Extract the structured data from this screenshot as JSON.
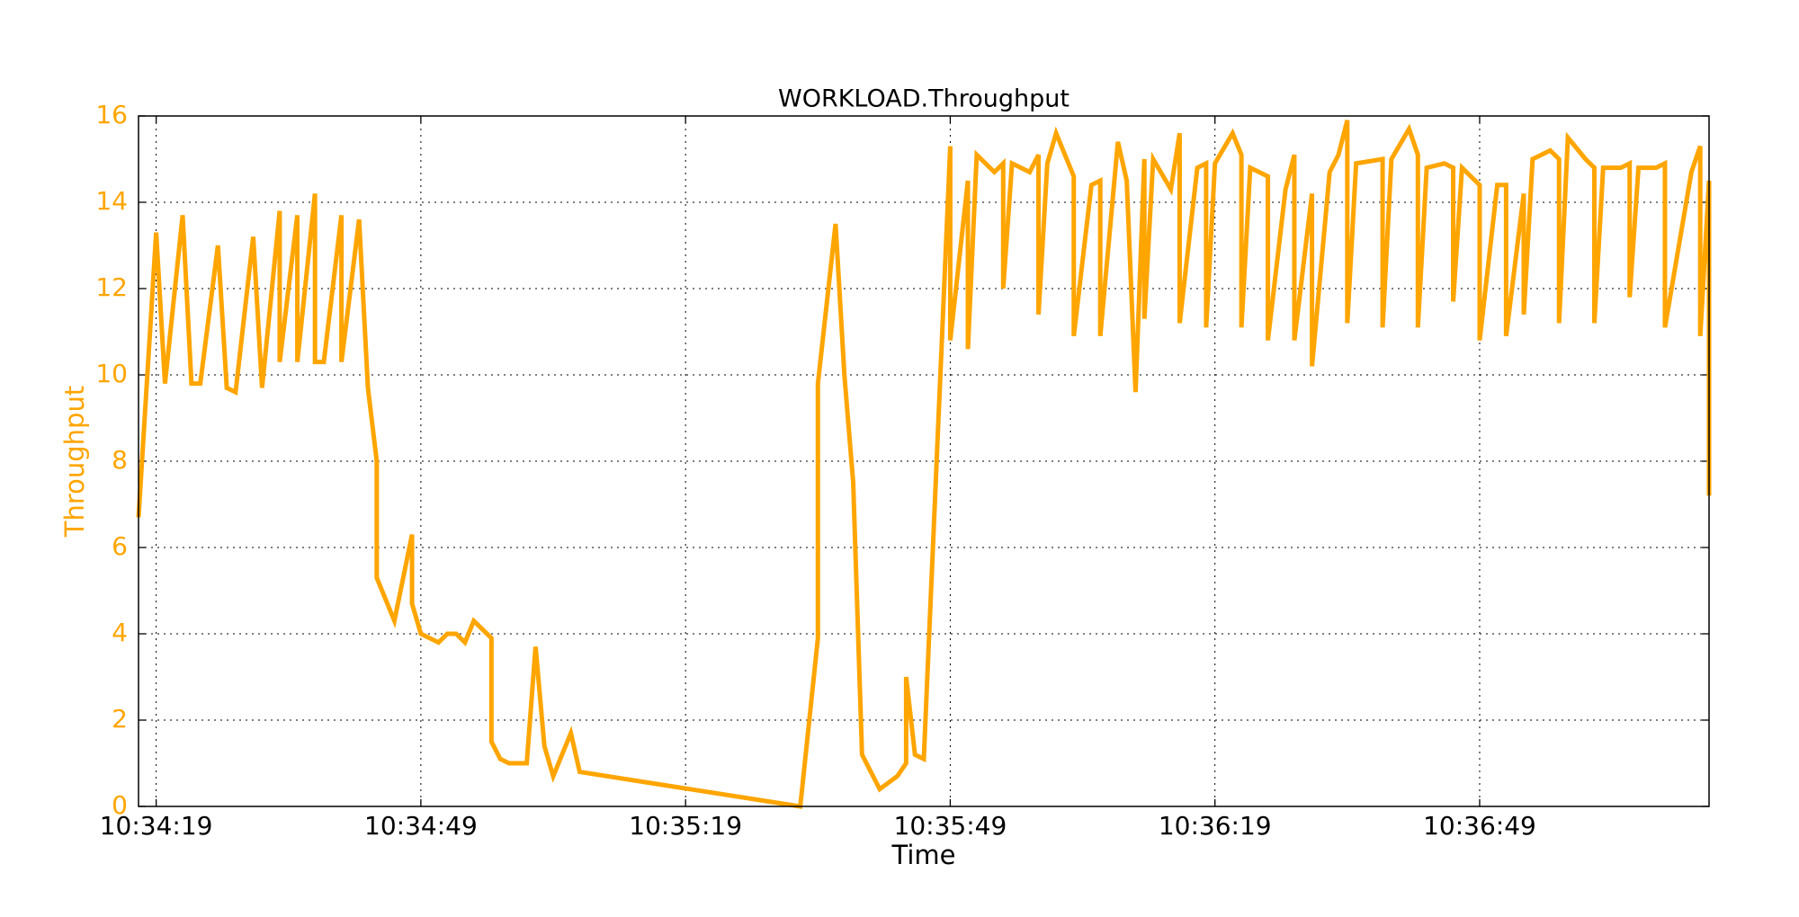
{
  "chart_data": {
    "type": "line",
    "title": "WORKLOAD.Throughput",
    "x_label": "Time",
    "y_label": "Throughput",
    "x": [
      "10:34:17",
      "10:34:19",
      "10:34:20",
      "10:34:22",
      "10:34:23",
      "10:34:24",
      "10:34:26",
      "10:34:27",
      "10:34:28",
      "10:34:30",
      "10:34:31",
      "10:34:33",
      "10:34:33",
      "10:34:35",
      "10:34:35",
      "10:34:37",
      "10:34:37",
      "10:34:38",
      "10:34:40",
      "10:34:40",
      "10:34:42",
      "10:34:43",
      "10:34:44",
      "10:34:44",
      "10:34:46",
      "10:34:48",
      "10:34:48",
      "10:34:49",
      "10:34:51",
      "10:34:52",
      "10:34:53",
      "10:34:54",
      "10:34:55",
      "10:34:56",
      "10:34:57",
      "10:34:57",
      "10:34:58",
      "10:34:59",
      "10:35:01",
      "10:35:02",
      "10:35:03",
      "10:35:04",
      "10:35:06",
      "10:35:07",
      "10:35:32",
      "10:35:34",
      "10:35:34",
      "10:35:36",
      "10:35:37",
      "10:35:38",
      "10:35:39",
      "10:35:41",
      "10:35:43",
      "10:35:44",
      "10:35:44",
      "10:35:45",
      "10:35:46",
      "10:35:49",
      "10:35:49",
      "10:35:51",
      "10:35:51",
      "10:35:52",
      "10:35:54",
      "10:35:55",
      "10:35:55",
      "10:35:56",
      "10:35:58",
      "10:35:59",
      "10:35:59",
      "10:36:00",
      "10:36:01",
      "10:36:03",
      "10:36:03",
      "10:36:05",
      "10:36:06",
      "10:36:06",
      "10:36:08",
      "10:36:09",
      "10:36:10",
      "10:36:11",
      "10:36:11",
      "10:36:12",
      "10:36:14",
      "10:36:15",
      "10:36:15",
      "10:36:17",
      "10:36:18",
      "10:36:18",
      "10:36:19",
      "10:36:21",
      "10:36:22",
      "10:36:22",
      "10:36:23",
      "10:36:25",
      "10:36:25",
      "10:36:27",
      "10:36:28",
      "10:36:28",
      "10:36:30",
      "10:36:30",
      "10:36:32",
      "10:36:33",
      "10:36:34",
      "10:36:34",
      "10:36:35",
      "10:36:38",
      "10:36:38",
      "10:36:39",
      "10:36:41",
      "10:36:42",
      "10:36:42",
      "10:36:43",
      "10:36:45",
      "10:36:46",
      "10:36:46",
      "10:36:47",
      "10:36:49",
      "10:36:49",
      "10:36:51",
      "10:36:52",
      "10:36:52",
      "10:36:54",
      "10:36:54",
      "10:36:55",
      "10:36:57",
      "10:36:58",
      "10:36:58",
      "10:36:59",
      "10:37:01",
      "10:37:02",
      "10:37:02",
      "10:37:03",
      "10:37:05",
      "10:37:06",
      "10:37:06",
      "10:37:07",
      "10:37:09",
      "10:37:10",
      "10:37:10",
      "10:37:13",
      "10:37:14",
      "10:37:14",
      "10:37:15",
      "10:37:15"
    ],
    "series": [
      {
        "name": "Throughput",
        "color": "#ffa500",
        "values": [
          6.7,
          13.3,
          9.8,
          13.7,
          9.8,
          9.8,
          13.0,
          9.7,
          9.6,
          13.2,
          9.7,
          13.8,
          10.3,
          13.7,
          10.3,
          14.2,
          10.3,
          10.3,
          13.7,
          10.3,
          13.6,
          9.7,
          8.0,
          5.3,
          4.3,
          6.3,
          4.7,
          4.0,
          3.8,
          4.0,
          4.0,
          3.8,
          4.3,
          4.1,
          3.9,
          1.5,
          1.1,
          1.0,
          1.0,
          3.7,
          1.4,
          0.7,
          1.7,
          0.8,
          0.0,
          3.9,
          9.8,
          13.5,
          10.0,
          7.5,
          1.2,
          0.4,
          0.7,
          1.0,
          3.0,
          1.2,
          1.1,
          15.3,
          10.8,
          14.5,
          10.6,
          15.1,
          14.7,
          14.9,
          12.0,
          14.9,
          14.7,
          15.1,
          11.4,
          14.9,
          15.6,
          14.6,
          10.9,
          14.4,
          14.5,
          10.9,
          15.4,
          14.5,
          9.6,
          15.0,
          11.3,
          15.0,
          14.3,
          15.6,
          11.2,
          14.8,
          14.9,
          11.1,
          14.9,
          15.6,
          15.1,
          11.1,
          14.8,
          14.6,
          10.8,
          14.3,
          15.1,
          10.8,
          14.2,
          10.2,
          14.7,
          15.1,
          15.9,
          11.2,
          14.9,
          15.0,
          11.1,
          15.0,
          15.7,
          15.1,
          11.1,
          14.8,
          14.9,
          14.8,
          11.7,
          14.8,
          14.4,
          10.8,
          14.4,
          14.4,
          10.9,
          14.2,
          11.4,
          15.0,
          15.2,
          15.0,
          11.2,
          15.5,
          15.0,
          14.8,
          11.2,
          14.8,
          14.8,
          14.9,
          11.8,
          14.8,
          14.8,
          14.9,
          11.1,
          14.7,
          15.3,
          10.9,
          14.5,
          7.2
        ]
      }
    ],
    "xlim": [
      "10:34:17",
      "10:37:15"
    ],
    "xticks": [
      "10:34:19",
      "10:34:49",
      "10:35:19",
      "10:35:49",
      "10:36:19",
      "10:36:49"
    ],
    "ylim": [
      0,
      16
    ],
    "yticks": [
      0,
      2,
      4,
      6,
      8,
      10,
      12,
      14,
      16
    ],
    "grid": true
  }
}
